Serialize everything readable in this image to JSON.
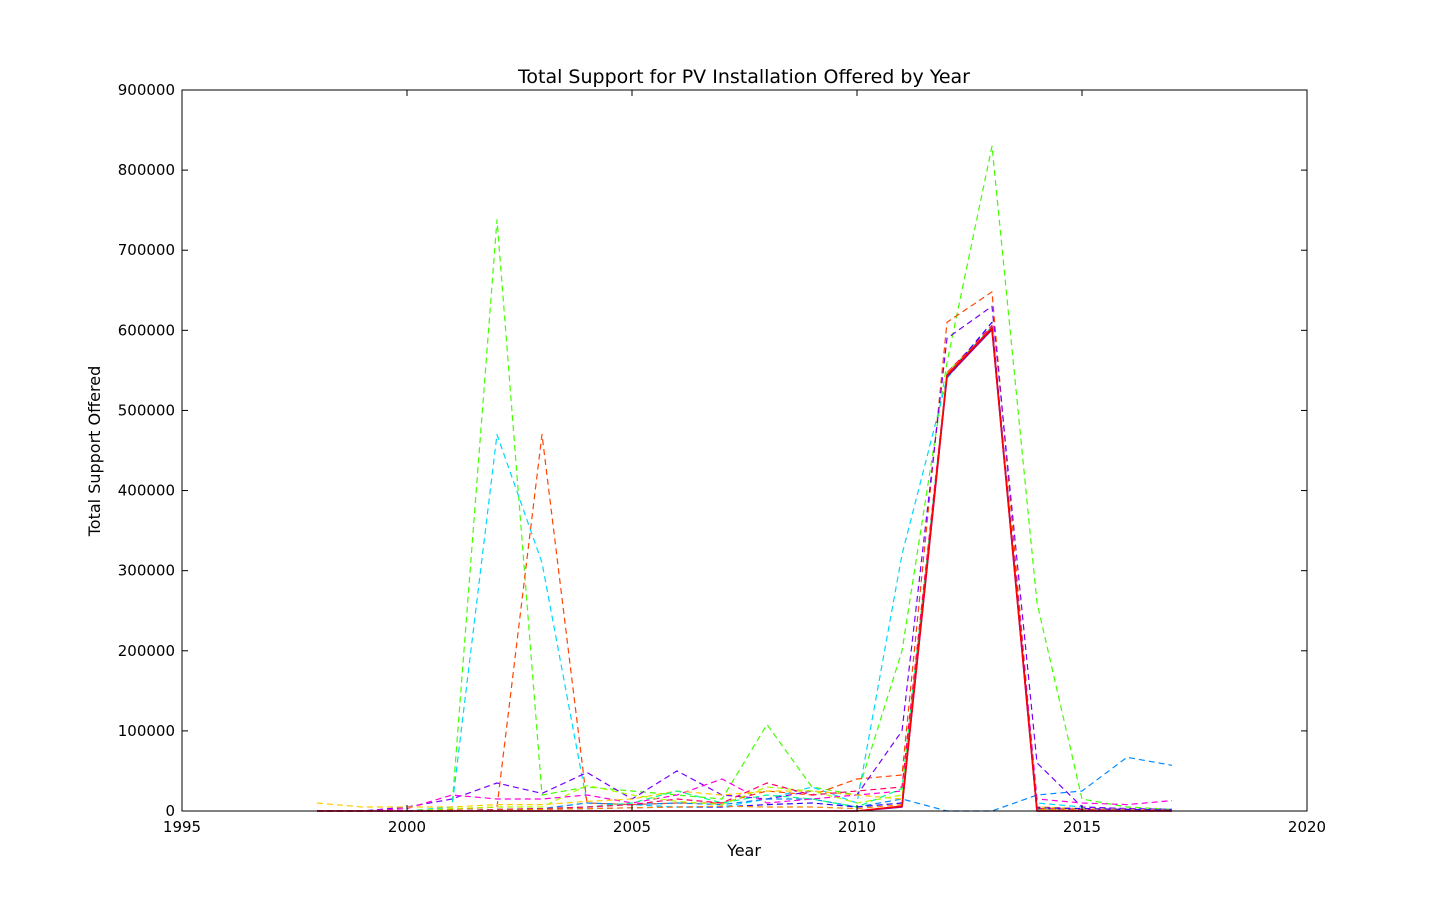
{
  "chart_data": {
    "type": "line",
    "title": "Total Support for PV Installation Offered by Year",
    "xlabel": "Year",
    "ylabel": "Total Support Offered",
    "xlim": [
      1995,
      2020
    ],
    "ylim": [
      0,
      900000
    ],
    "xticks": [
      1995,
      2000,
      2005,
      2010,
      2015,
      2020
    ],
    "xtick_labels": [
      "1995",
      "2000",
      "2005",
      "2010",
      "2015",
      "2020"
    ],
    "yticks": [
      0,
      100000,
      200000,
      300000,
      400000,
      500000,
      600000,
      700000,
      800000,
      900000
    ],
    "ytick_labels": [
      "0",
      "100000",
      "200000",
      "300000",
      "400000",
      "500000",
      "600000",
      "700000",
      "800000",
      "900000"
    ],
    "grid": false,
    "legend": "none",
    "x": [
      1998,
      1999,
      2000,
      2001,
      2002,
      2003,
      2004,
      2005,
      2006,
      2007,
      2008,
      2009,
      2010,
      2011,
      2012,
      2013,
      2014,
      2015,
      2016,
      2017
    ],
    "series": [
      {
        "color": "#44ff00",
        "style": "dashed",
        "values": [
          0,
          0,
          0,
          5000,
          738000,
          20000,
          30000,
          25000,
          20000,
          15000,
          108000,
          30000,
          20000,
          200000,
          560000,
          830000,
          260000,
          15000,
          5000,
          2000
        ]
      },
      {
        "color": "#00d8ff",
        "style": "dashed",
        "values": [
          0,
          0,
          0,
          5000,
          470000,
          310000,
          10000,
          8000,
          5000,
          5000,
          15000,
          30000,
          10000,
          320000,
          540000,
          605000,
          10000,
          5000,
          3000,
          2000
        ]
      },
      {
        "color": "#ff4400",
        "style": "dashed",
        "values": [
          0,
          0,
          0,
          2000,
          5000,
          470000,
          10000,
          8000,
          10000,
          10000,
          25000,
          20000,
          40000,
          45000,
          610000,
          648000,
          5000,
          3000,
          2000,
          1000
        ]
      },
      {
        "color": "#7700ff",
        "style": "dashed",
        "values": [
          0,
          0,
          5000,
          15000,
          35000,
          22000,
          48000,
          15000,
          50000,
          20000,
          15000,
          25000,
          20000,
          100000,
          590000,
          630000,
          60000,
          5000,
          3000,
          2000
        ]
      },
      {
        "color": "#0088ff",
        "style": "dashed",
        "values": [
          0,
          0,
          0,
          0,
          2000,
          3000,
          10000,
          8000,
          10000,
          8000,
          15000,
          15000,
          5000,
          15000,
          0,
          0,
          20000,
          25000,
          67000,
          57000
        ]
      },
      {
        "color": "#ff00dd",
        "style": "dashed",
        "values": [
          0,
          0,
          3000,
          20000,
          15000,
          15000,
          20000,
          10000,
          20000,
          40000,
          10000,
          15000,
          20000,
          25000,
          545000,
          603000,
          15000,
          10000,
          8000,
          13000
        ]
      },
      {
        "color": "#ffcc00",
        "style": "dashed",
        "values": [
          10000,
          5000,
          5000,
          5000,
          8000,
          8000,
          12000,
          15000,
          25000,
          20000,
          25000,
          25000,
          20000,
          15000,
          545000,
          600000,
          5000,
          3000,
          2000,
          1000
        ]
      },
      {
        "color": "#aaff00",
        "style": "dashed",
        "values": [
          0,
          0,
          0,
          3000,
          5000,
          5000,
          32000,
          20000,
          12000,
          8000,
          30000,
          25000,
          10000,
          20000,
          548000,
          602000,
          3000,
          2000,
          1000,
          0
        ]
      },
      {
        "color": "#00ff88",
        "style": "dashed",
        "values": [
          0,
          0,
          0,
          0,
          2000,
          3000,
          5000,
          10000,
          25000,
          10000,
          20000,
          15000,
          5000,
          28000,
          546000,
          604000,
          2000,
          1000,
          500,
          0
        ]
      },
      {
        "color": "#ff0066",
        "style": "dashed",
        "values": [
          0,
          0,
          0,
          0,
          2000,
          3000,
          5000,
          8000,
          15000,
          10000,
          35000,
          20000,
          25000,
          30000,
          547000,
          606000,
          3000,
          2000,
          1000,
          500
        ]
      },
      {
        "color": "#3300ff",
        "style": "dashed",
        "values": [
          0,
          0,
          0,
          0,
          1000,
          2000,
          3000,
          4000,
          5000,
          5000,
          8000,
          10000,
          5000,
          10000,
          543000,
          610000,
          4000,
          3000,
          2000,
          1000
        ]
      },
      {
        "color": "#ff8800",
        "style": "dashed",
        "values": [
          0,
          0,
          0,
          0,
          1000,
          2000,
          3000,
          4000,
          5000,
          6000,
          5000,
          5000,
          3000,
          8000,
          546000,
          603000,
          2000,
          1000,
          500,
          0
        ]
      },
      {
        "color": "#8800aa",
        "style": "solid",
        "values": [
          0,
          0,
          0,
          0,
          0,
          0,
          0,
          0,
          0,
          0,
          0,
          0,
          0,
          5000,
          542000,
          601000,
          0,
          0,
          0,
          0
        ]
      },
      {
        "color": "#ff0000",
        "style": "solid",
        "values": [
          0,
          0,
          0,
          0,
          0,
          0,
          0,
          0,
          0,
          0,
          0,
          0,
          0,
          6000,
          544000,
          603000,
          0,
          0,
          0,
          0
        ]
      }
    ]
  }
}
